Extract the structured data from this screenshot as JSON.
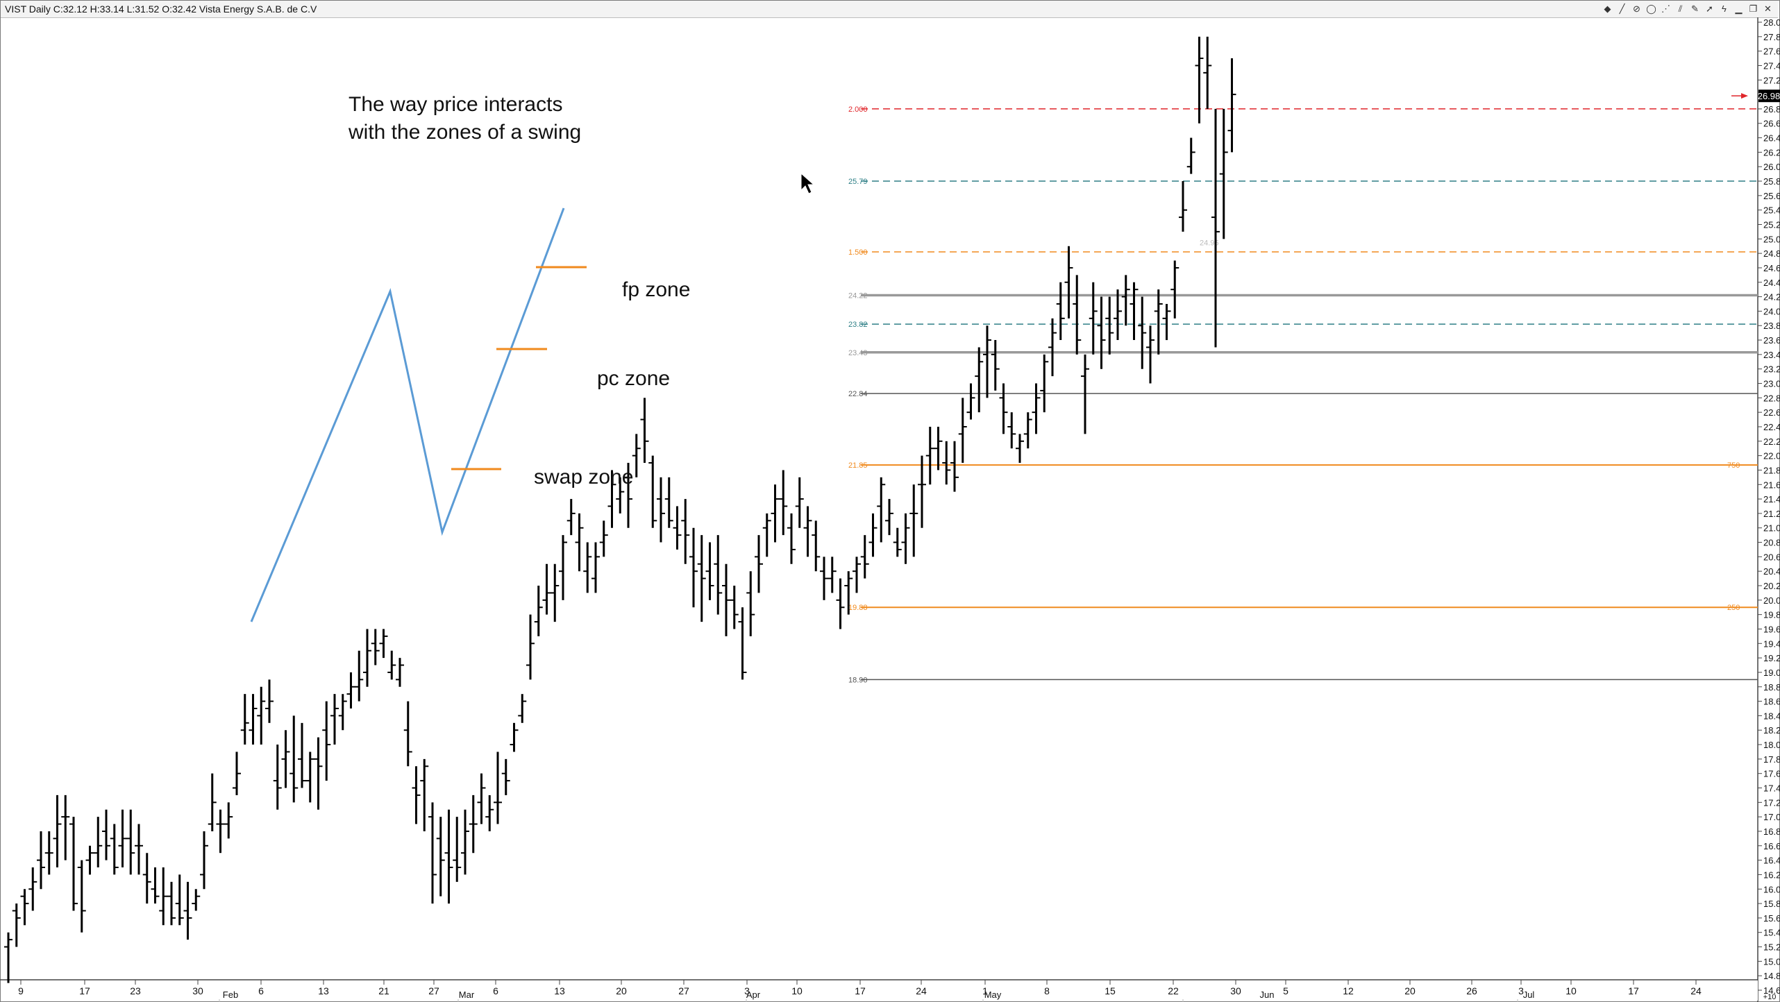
{
  "window": {
    "title": "VIST Daily C:32.12 H:33.14 L:31.52 O:32.42 Vista Energy S.A.B. de C.V"
  },
  "toolbar": {
    "icons": [
      "bar-style-icon",
      "line-tool-icon",
      "no-entry-icon",
      "ellipse-tool-icon",
      "fib-tool-icon",
      "channel-tool-icon",
      "pencil-icon",
      "cursor-icon",
      "lightning-icon",
      "minimize-icon",
      "restore-icon",
      "close-icon"
    ],
    "glyphs": [
      "◆",
      "╱",
      "⊘",
      "◯",
      "⋰",
      "⫽",
      "✎",
      "➚",
      "ϟ",
      "▁",
      "❐",
      "✕"
    ]
  },
  "colors": {
    "bars": "#000000",
    "red": "#e0262b",
    "teal": "#2e7f86",
    "orange": "#f08a1e",
    "gray": "#999999",
    "dark_gray": "#555555",
    "swing": "#5b9bd5",
    "zone_mark": "#f08a1e",
    "price_tag_bg": "#000000",
    "price_arrow": "#e0262b"
  },
  "annotation": {
    "lines": [
      "The way price interacts",
      "with the zones of a swing"
    ],
    "fp": "fp zone",
    "pc": "pc zone",
    "swap": "swap zone"
  },
  "current_price_tag": "26.98",
  "chart_data": {
    "type": "bar",
    "subtype": "ohlc",
    "y_axis": {
      "min": 14.6,
      "max": 28.0,
      "step": 0.2,
      "side": "right"
    },
    "x_ticks": [
      "9",
      "17",
      "23",
      "30",
      "6",
      "13",
      "21",
      "27",
      "6",
      "13",
      "20",
      "27",
      "3",
      "10",
      "17",
      "24",
      "1",
      "8",
      "15",
      "22",
      "30",
      "5",
      "12",
      "20",
      "26",
      "3",
      "10",
      "17",
      "24"
    ],
    "x_months": [
      "Feb",
      "Mar",
      "Apr",
      "May",
      "Jun",
      "Jul"
    ],
    "x_end_label": "+10",
    "levels": [
      {
        "label": "2.000",
        "price": 26.8,
        "color": "red",
        "style": "dashed"
      },
      {
        "label": "25.79",
        "price": 25.8,
        "color": "teal",
        "style": "dashed"
      },
      {
        "label": "1.500",
        "price": 24.82,
        "color": "orange",
        "style": "dashed"
      },
      {
        "label": "24.22",
        "price": 24.22,
        "color": "gray",
        "style": "thick"
      },
      {
        "label": "23.82",
        "price": 23.82,
        "color": "teal",
        "style": "dashed"
      },
      {
        "label": "23.43",
        "price": 23.43,
        "color": "gray",
        "style": "thick"
      },
      {
        "label": "22.84",
        "price": 22.86,
        "color": "dark_gray",
        "style": "thin"
      },
      {
        "label": "21.85",
        "price": 21.87,
        "color": "orange",
        "style": "solid",
        "right_label": "750"
      },
      {
        "label": "19.88",
        "price": 19.9,
        "color": "orange",
        "style": "solid",
        "right_label": "250"
      },
      {
        "label": "18.90",
        "price": 18.9,
        "color": "dark_gray",
        "style": "thin"
      }
    ],
    "faint_level_label": "24.95",
    "ohlc": [
      [
        15.4,
        15.2,
        14.7,
        15.3
      ],
      [
        15.8,
        15.7,
        15.2,
        15.6
      ],
      [
        16.0,
        15.9,
        15.5,
        15.8
      ],
      [
        16.3,
        16.0,
        15.7,
        16.1
      ],
      [
        16.8,
        16.4,
        16.0,
        16.3
      ],
      [
        16.8,
        16.5,
        16.2,
        16.5
      ],
      [
        17.3,
        16.7,
        16.3,
        16.9
      ],
      [
        17.3,
        17.0,
        16.4,
        17.0
      ],
      [
        17.0,
        16.9,
        15.7,
        15.8
      ],
      [
        16.4,
        16.3,
        15.4,
        15.7
      ],
      [
        16.6,
        16.4,
        16.2,
        16.5
      ],
      [
        17.0,
        16.5,
        16.3,
        16.6
      ],
      [
        17.1,
        16.8,
        16.4,
        16.6
      ],
      [
        16.9,
        16.7,
        16.2,
        16.3
      ],
      [
        17.1,
        16.6,
        16.3,
        16.7
      ],
      [
        17.1,
        16.7,
        16.2,
        16.5
      ],
      [
        16.9,
        16.6,
        16.2,
        16.6
      ],
      [
        16.5,
        16.2,
        15.8,
        16.1
      ],
      [
        16.3,
        16.0,
        15.8,
        15.9
      ],
      [
        16.3,
        15.7,
        15.5,
        15.9
      ],
      [
        16.1,
        15.9,
        15.5,
        15.6
      ],
      [
        16.2,
        15.8,
        15.5,
        15.6
      ],
      [
        16.1,
        15.7,
        15.3,
        15.6
      ],
      [
        16.0,
        15.8,
        15.7,
        15.9
      ],
      [
        16.8,
        16.2,
        16.0,
        16.6
      ],
      [
        17.6,
        16.9,
        16.8,
        17.2
      ],
      [
        17.1,
        16.9,
        16.5,
        16.9
      ],
      [
        17.2,
        16.9,
        16.7,
        17.0
      ],
      [
        17.9,
        17.4,
        17.3,
        17.6
      ],
      [
        18.7,
        18.2,
        18.0,
        18.3
      ],
      [
        18.7,
        18.2,
        18.0,
        18.5
      ],
      [
        18.8,
        18.4,
        18.0,
        18.6
      ],
      [
        18.9,
        18.5,
        18.3,
        18.6
      ],
      [
        18.0,
        17.5,
        17.1,
        17.4
      ],
      [
        18.2,
        17.8,
        17.4,
        17.9
      ],
      [
        18.4,
        17.6,
        17.2,
        17.4
      ],
      [
        18.3,
        17.8,
        17.4,
        17.5
      ],
      [
        17.9,
        17.5,
        17.2,
        17.8
      ],
      [
        18.1,
        17.8,
        17.1,
        17.7
      ],
      [
        18.6,
        18.2,
        17.5,
        18.0
      ],
      [
        18.7,
        18.4,
        18.0,
        18.5
      ],
      [
        18.7,
        18.4,
        18.2,
        18.6
      ],
      [
        19.0,
        18.7,
        18.5,
        18.8
      ],
      [
        19.3,
        18.8,
        18.6,
        18.9
      ],
      [
        19.6,
        19.0,
        18.8,
        19.3
      ],
      [
        19.6,
        19.4,
        19.1,
        19.3
      ],
      [
        19.6,
        19.4,
        19.2,
        19.5
      ],
      [
        19.3,
        19.0,
        18.9,
        19.1
      ],
      [
        19.2,
        18.9,
        18.8,
        19.1
      ],
      [
        18.6,
        18.2,
        17.7,
        17.9
      ],
      [
        17.7,
        17.4,
        16.9,
        17.3
      ],
      [
        17.8,
        17.5,
        16.8,
        17.7
      ],
      [
        17.2,
        17.0,
        15.8,
        16.2
      ],
      [
        17.0,
        16.7,
        15.9,
        16.4
      ],
      [
        17.1,
        16.5,
        15.8,
        16.3
      ],
      [
        17.0,
        16.4,
        16.1,
        16.3
      ],
      [
        17.1,
        16.5,
        16.2,
        16.8
      ],
      [
        17.3,
        16.9,
        16.5,
        16.9
      ],
      [
        17.6,
        17.2,
        16.9,
        17.4
      ],
      [
        17.3,
        17.0,
        16.8,
        17.1
      ],
      [
        17.9,
        17.2,
        16.9,
        17.2
      ],
      [
        17.8,
        17.6,
        17.3,
        17.5
      ],
      [
        18.3,
        18.0,
        17.9,
        18.2
      ],
      [
        18.7,
        18.4,
        18.3,
        18.6
      ],
      [
        19.8,
        19.1,
        18.9,
        19.4
      ],
      [
        20.2,
        19.7,
        19.5,
        19.9
      ],
      [
        20.5,
        20.0,
        19.8,
        20.1
      ],
      [
        20.5,
        20.1,
        19.7,
        20.2
      ],
      [
        20.9,
        20.4,
        20.0,
        20.8
      ],
      [
        21.4,
        21.1,
        20.9,
        21.2
      ],
      [
        21.2,
        20.8,
        20.4,
        21.0
      ],
      [
        20.8,
        20.4,
        20.1,
        20.6
      ],
      [
        20.8,
        20.3,
        20.1,
        20.6
      ],
      [
        21.1,
        20.8,
        20.6,
        20.9
      ],
      [
        21.8,
        21.3,
        21.0,
        21.6
      ],
      [
        21.7,
        21.4,
        21.2,
        21.5
      ],
      [
        21.9,
        21.7,
        21.0,
        21.4
      ],
      [
        22.3,
        22.0,
        21.7,
        22.1
      ],
      [
        22.8,
        22.5,
        21.9,
        22.2
      ],
      [
        22.0,
        21.9,
        21.0,
        21.1
      ],
      [
        21.7,
        21.4,
        20.8,
        21.2
      ],
      [
        21.7,
        21.4,
        21.0,
        21.1
      ],
      [
        21.3,
        21.0,
        20.7,
        20.9
      ],
      [
        21.4,
        21.1,
        20.5,
        20.9
      ],
      [
        21.0,
        20.6,
        19.9,
        20.4
      ],
      [
        20.9,
        20.5,
        19.7,
        20.3
      ],
      [
        20.8,
        20.4,
        20.0,
        20.2
      ],
      [
        20.9,
        20.5,
        19.8,
        20.1
      ],
      [
        20.5,
        20.2,
        19.5,
        20.0
      ],
      [
        20.2,
        20.0,
        19.6,
        19.8
      ],
      [
        19.9,
        19.7,
        18.9,
        19.0
      ],
      [
        20.4,
        20.1,
        19.5,
        19.8
      ],
      [
        20.9,
        20.6,
        20.1,
        20.5
      ],
      [
        21.2,
        21.0,
        20.6,
        21.1
      ],
      [
        21.6,
        21.2,
        20.8,
        21.4
      ],
      [
        21.8,
        21.4,
        20.9,
        21.3
      ],
      [
        21.2,
        21.0,
        20.5,
        20.7
      ],
      [
        21.7,
        21.3,
        21.0,
        21.4
      ],
      [
        21.3,
        21.0,
        20.6,
        21.1
      ],
      [
        21.1,
        20.9,
        20.4,
        20.6
      ],
      [
        20.6,
        20.4,
        20.0,
        20.3
      ],
      [
        20.6,
        20.3,
        20.1,
        20.4
      ],
      [
        20.3,
        20.0,
        19.6,
        19.9
      ],
      [
        20.4,
        20.2,
        19.8,
        20.3
      ],
      [
        20.6,
        20.4,
        20.1,
        20.5
      ],
      [
        20.9,
        20.6,
        20.3,
        20.5
      ],
      [
        21.2,
        20.8,
        20.6,
        21.0
      ],
      [
        21.7,
        21.3,
        20.8,
        21.6
      ],
      [
        21.4,
        21.1,
        20.9,
        21.2
      ],
      [
        21.0,
        20.8,
        20.6,
        20.7
      ],
      [
        21.2,
        20.8,
        20.5,
        21.0
      ],
      [
        21.6,
        21.2,
        20.6,
        21.2
      ],
      [
        22.0,
        21.6,
        21.0,
        21.6
      ],
      [
        22.4,
        22.0,
        21.6,
        22.1
      ],
      [
        22.4,
        22.1,
        21.8,
        22.2
      ],
      [
        22.2,
        21.9,
        21.6,
        21.8
      ],
      [
        22.2,
        21.9,
        21.5,
        21.7
      ],
      [
        22.8,
        22.3,
        21.9,
        22.4
      ],
      [
        23.0,
        22.6,
        22.5,
        22.8
      ],
      [
        23.5,
        23.1,
        22.6,
        23.3
      ],
      [
        23.8,
        23.4,
        22.8,
        23.6
      ],
      [
        23.6,
        23.4,
        22.9,
        23.2
      ],
      [
        23.0,
        22.8,
        22.3,
        22.6
      ],
      [
        22.6,
        22.4,
        22.1,
        22.3
      ],
      [
        22.3,
        22.1,
        21.9,
        22.2
      ],
      [
        22.6,
        22.3,
        22.1,
        22.5
      ],
      [
        23.0,
        22.6,
        22.3,
        22.8
      ],
      [
        23.4,
        22.9,
        22.6,
        23.3
      ],
      [
        23.9,
        23.5,
        23.1,
        23.7
      ],
      [
        24.4,
        24.1,
        23.6,
        23.9
      ],
      [
        24.9,
        24.4,
        23.9,
        24.6
      ],
      [
        24.5,
        24.1,
        23.4,
        23.6
      ],
      [
        23.4,
        23.1,
        22.3,
        23.2
      ],
      [
        24.4,
        23.9,
        23.4,
        24.0
      ],
      [
        24.2,
        23.8,
        23.2,
        23.6
      ],
      [
        24.2,
        23.9,
        23.4,
        23.7
      ],
      [
        24.3,
        23.9,
        23.6,
        24.0
      ],
      [
        24.5,
        24.2,
        23.8,
        24.3
      ],
      [
        24.4,
        24.1,
        23.6,
        24.3
      ],
      [
        24.2,
        23.8,
        23.2,
        23.7
      ],
      [
        23.8,
        23.5,
        23.0,
        23.6
      ],
      [
        24.3,
        24.0,
        23.4,
        24.1
      ],
      [
        24.1,
        23.9,
        23.6,
        24.0
      ],
      [
        24.7,
        24.3,
        23.9,
        24.6
      ],
      [
        25.8,
        25.3,
        25.1,
        25.4
      ],
      [
        26.4,
        26.0,
        25.9,
        26.2
      ],
      [
        27.8,
        27.4,
        26.6,
        27.5
      ],
      [
        27.8,
        27.3,
        26.8,
        27.4
      ],
      [
        26.8,
        25.3,
        23.5,
        25.1
      ],
      [
        26.8,
        25.9,
        25.0,
        26.2
      ],
      [
        27.5,
        26.5,
        26.2,
        27.0
      ]
    ]
  }
}
